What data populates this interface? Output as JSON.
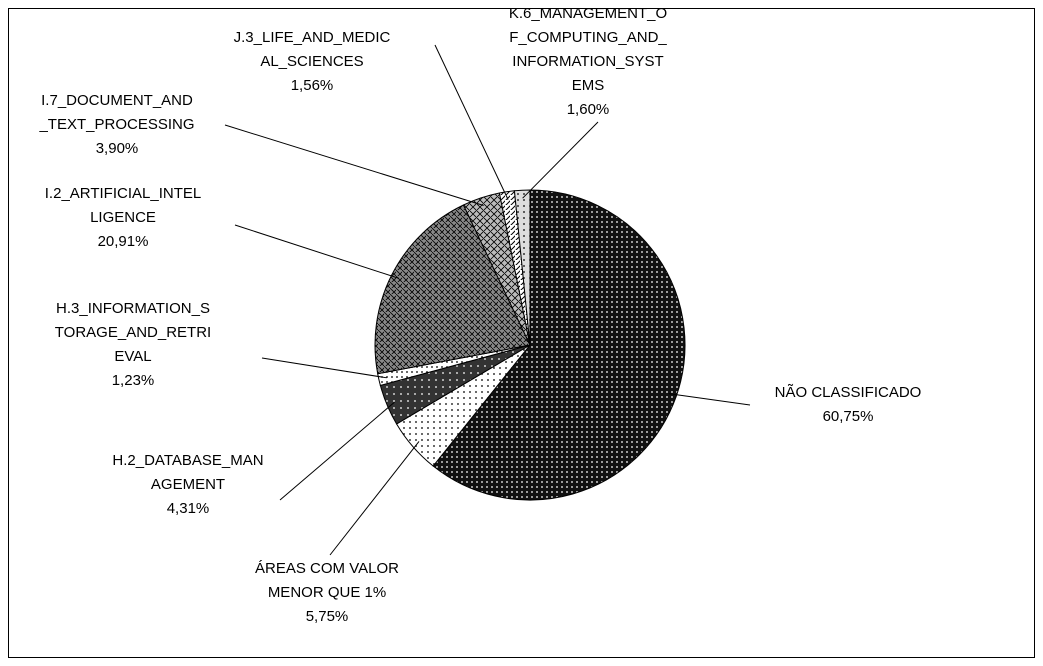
{
  "chart_data": {
    "type": "pie",
    "categories": [
      "NÃO CLASSIFICADO",
      "ÁREAS COM VALOR MENOR QUE 1%",
      "H.2_DATABASE_MANAGEMENT",
      "H.3_INFORMATION_STORAGE_AND_RETRIEVAL",
      "I.2_ARTIFICIAL_INTELLIGENCE",
      "I.7_DOCUMENT_AND_TEXT_PROCESSING",
      "J.3_LIFE_AND_MEDICAL_SCIENCES",
      "K.6_MANAGEMENT_OF_COMPUTING_AND_INFORMATION_SYSTEMS"
    ],
    "values": [
      60.75,
      5.75,
      4.31,
      1.23,
      20.91,
      3.9,
      1.56,
      1.6
    ],
    "value_labels": [
      "60,75%",
      "5,75%",
      "4,31%",
      "1,23%",
      "20,91%",
      "3,90%",
      "1,56%",
      "1,60%"
    ],
    "colors": [
      "#111111",
      "#ffffff",
      "#333333",
      "#ffffff",
      "#888888",
      "#bbbbbb",
      "#ffffff",
      "#dddddd"
    ]
  }
}
